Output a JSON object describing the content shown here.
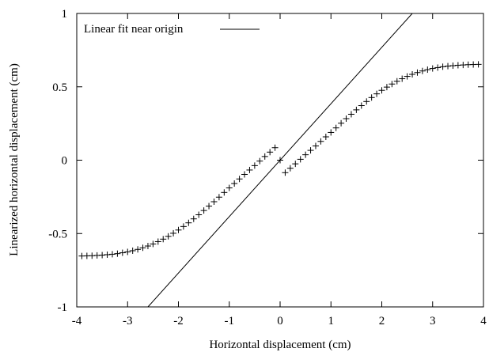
{
  "chart_data": {
    "type": "scatter",
    "title": "",
    "xlabel": "Horizontal displacement (cm)",
    "ylabel": "Linearized horizontal displacement (cm)",
    "xlim": [
      -4,
      4
    ],
    "ylim": [
      -1,
      1
    ],
    "x_ticks": [
      -4,
      -3,
      -2,
      -1,
      0,
      1,
      2,
      3,
      4
    ],
    "y_ticks": [
      -1,
      -0.5,
      0,
      0.5,
      1
    ],
    "x_tick_labels": [
      "-4",
      "-3",
      "-2",
      "-1",
      "0",
      "1",
      "2",
      "3",
      "4"
    ],
    "y_tick_labels": [
      "-1",
      "-0.5",
      "0",
      "0.5",
      "1"
    ],
    "grid": false,
    "legend_position": "top-left",
    "series": [
      {
        "name": "",
        "style": "plus-markers",
        "color": "#000000",
        "x": [
          -3.9,
          -3.8,
          -3.7,
          -3.6,
          -3.5,
          -3.4,
          -3.3,
          -3.2,
          -3.1,
          -3.0,
          -2.9,
          -2.8,
          -2.7,
          -2.6,
          -2.5,
          -2.4,
          -2.3,
          -2.2,
          -2.1,
          -2.0,
          -1.9,
          -1.8,
          -1.7,
          -1.6,
          -1.5,
          -1.4,
          -1.3,
          -1.2,
          -1.1,
          -1.0,
          -0.9,
          -0.8,
          -0.7,
          -0.6,
          -0.5,
          -0.4,
          -0.3,
          -0.2,
          -0.1,
          0.0,
          0.1,
          0.2,
          0.3,
          0.4,
          0.5,
          0.6,
          0.7,
          0.8,
          0.9,
          1.0,
          1.1,
          1.2,
          1.3,
          1.4,
          1.5,
          1.6,
          1.7,
          1.8,
          1.9,
          2.0,
          2.1,
          2.2,
          2.3,
          2.4,
          2.5,
          2.6,
          2.7,
          2.8,
          2.9,
          3.0,
          3.1,
          3.2,
          3.3,
          3.4,
          3.5,
          3.6,
          3.7,
          3.8,
          3.9
        ],
        "y": [
          -0.653,
          -0.652,
          -0.651,
          -0.649,
          -0.647,
          -0.644,
          -0.641,
          -0.637,
          -0.631,
          -0.625,
          -0.617,
          -0.608,
          -0.597,
          -0.585,
          -0.571,
          -0.555,
          -0.538,
          -0.519,
          -0.498,
          -0.476,
          -0.452,
          -0.427,
          -0.4,
          -0.372,
          -0.343,
          -0.313,
          -0.283,
          -0.252,
          -0.22,
          -0.189,
          -0.159,
          -0.128,
          -0.097,
          -0.067,
          -0.037,
          -0.006,
          0.025,
          0.055,
          0.085,
          0.0,
          -0.085,
          -0.055,
          -0.025,
          0.006,
          0.037,
          0.067,
          0.097,
          0.128,
          0.159,
          0.189,
          0.22,
          0.252,
          0.283,
          0.313,
          0.343,
          0.372,
          0.4,
          0.427,
          0.452,
          0.476,
          0.498,
          0.519,
          0.538,
          0.555,
          0.571,
          0.585,
          0.597,
          0.608,
          0.617,
          0.625,
          0.631,
          0.637,
          0.641,
          0.644,
          0.647,
          0.649,
          0.651,
          0.652,
          0.653
        ]
      },
      {
        "name": "Linear fit near origin",
        "style": "line",
        "color": "#000000",
        "x": [
          -2.6,
          2.6
        ],
        "y": [
          -1.0,
          1.0
        ]
      }
    ]
  }
}
